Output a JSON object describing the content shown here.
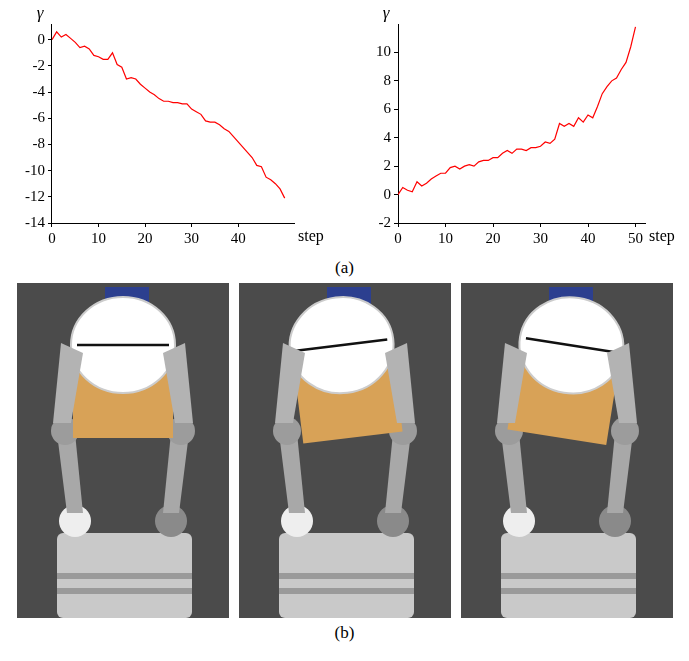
{
  "chart_data": [
    {
      "type": "line",
      "x_label": "step",
      "y_label": "γ",
      "color": "#ff0000",
      "grid": false,
      "x": [
        0,
        1,
        2,
        3,
        4,
        5,
        6,
        7,
        8,
        9,
        10,
        11,
        12,
        13,
        14,
        15,
        16,
        17,
        18,
        19,
        20,
        21,
        22,
        23,
        24,
        25,
        26,
        27,
        28,
        29,
        30,
        31,
        32,
        33,
        34,
        35,
        36,
        37,
        38,
        39,
        40,
        41,
        42,
        43,
        44,
        45,
        46,
        47,
        48,
        49,
        50
      ],
      "values": [
        0,
        0.6,
        0.2,
        0.4,
        0.1,
        -0.2,
        -0.6,
        -0.5,
        -0.7,
        -1.2,
        -1.3,
        -1.5,
        -1.5,
        -1.0,
        -1.9,
        -2.1,
        -3.0,
        -2.9,
        -3.0,
        -3.4,
        -3.7,
        -4.0,
        -4.2,
        -4.5,
        -4.7,
        -4.7,
        -4.8,
        -4.8,
        -4.9,
        -4.9,
        -5.3,
        -5.5,
        -5.7,
        -6.2,
        -6.3,
        -6.3,
        -6.5,
        -6.8,
        -7.0,
        -7.4,
        -7.8,
        -8.2,
        -8.6,
        -9.0,
        -9.6,
        -9.7,
        -10.5,
        -10.7,
        -11.0,
        -11.4,
        -12.1
      ],
      "xlim": [
        0,
        52
      ],
      "xticks": [
        0,
        10,
        20,
        30,
        40
      ],
      "ylim": [
        -14,
        1.2
      ],
      "yticks": [
        -14,
        -12,
        -10,
        -8,
        -6,
        -4,
        -2,
        0
      ]
    },
    {
      "type": "line",
      "x_label": "step",
      "y_label": "γ",
      "color": "#ff0000",
      "grid": false,
      "x": [
        0,
        1,
        2,
        3,
        4,
        5,
        6,
        7,
        8,
        9,
        10,
        11,
        12,
        13,
        14,
        15,
        16,
        17,
        18,
        19,
        20,
        21,
        22,
        23,
        24,
        25,
        26,
        27,
        28,
        29,
        30,
        31,
        32,
        33,
        34,
        35,
        36,
        37,
        38,
        39,
        40,
        41,
        42,
        43,
        44,
        45,
        46,
        47,
        48,
        49,
        50
      ],
      "values": [
        0,
        0.5,
        0.3,
        0.2,
        0.9,
        0.6,
        0.8,
        1.1,
        1.3,
        1.5,
        1.5,
        1.9,
        2.0,
        1.8,
        2.0,
        2.1,
        2.0,
        2.3,
        2.4,
        2.4,
        2.6,
        2.6,
        2.9,
        3.1,
        2.9,
        3.2,
        3.2,
        3.1,
        3.3,
        3.3,
        3.4,
        3.7,
        3.6,
        3.9,
        5.0,
        4.8,
        5.0,
        4.8,
        5.4,
        5.1,
        5.6,
        5.4,
        6.2,
        7.1,
        7.6,
        8.0,
        8.2,
        8.8,
        9.3,
        10.4,
        11.8
      ],
      "xlim": [
        0,
        52
      ],
      "xticks": [
        0,
        10,
        20,
        30,
        40,
        50
      ],
      "ylim": [
        -2,
        12
      ],
      "yticks": [
        -2,
        0,
        2,
        4,
        6,
        8,
        10
      ]
    }
  ],
  "panel_labels": [
    "(a)",
    "(b)"
  ]
}
